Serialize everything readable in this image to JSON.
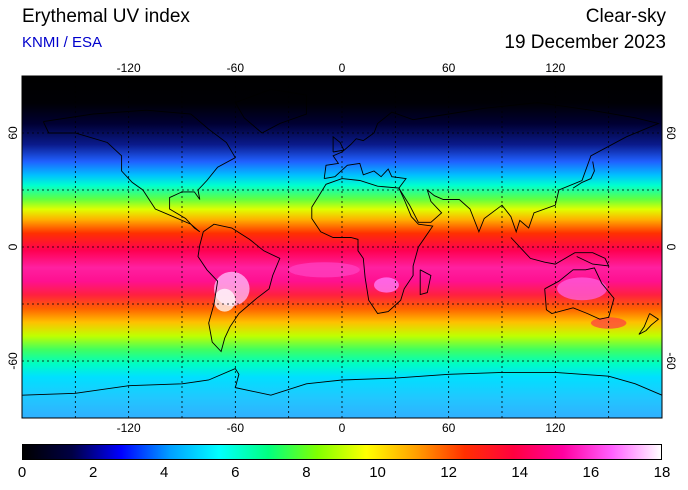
{
  "header": {
    "title": "Erythemal UV index",
    "subtitle": "KNMI / ESA",
    "mode": "Clear-sky",
    "date": "19 December 2023"
  },
  "map": {
    "lon_ticks": [
      "-120",
      "-60",
      "0",
      "60",
      "120"
    ],
    "lat_ticks": [
      "60",
      "0",
      "-60"
    ],
    "lon_range": [
      -180,
      180
    ],
    "lat_range": [
      -90,
      90
    ],
    "grid": "dashed every 30 degrees",
    "coastlines": "black"
  },
  "colorbar": {
    "ticks": [
      "0",
      "2",
      "4",
      "6",
      "8",
      "10",
      "12",
      "14",
      "16",
      "18"
    ],
    "range": [
      0,
      18
    ],
    "colors": [
      "#000000",
      "#000044",
      "#0000ff",
      "#00a0ff",
      "#00ffff",
      "#00ff80",
      "#80ff00",
      "#ffff00",
      "#ffa000",
      "#ff3000",
      "#ff0040",
      "#ff00a0",
      "#ff60ff",
      "#ffffff"
    ]
  }
}
